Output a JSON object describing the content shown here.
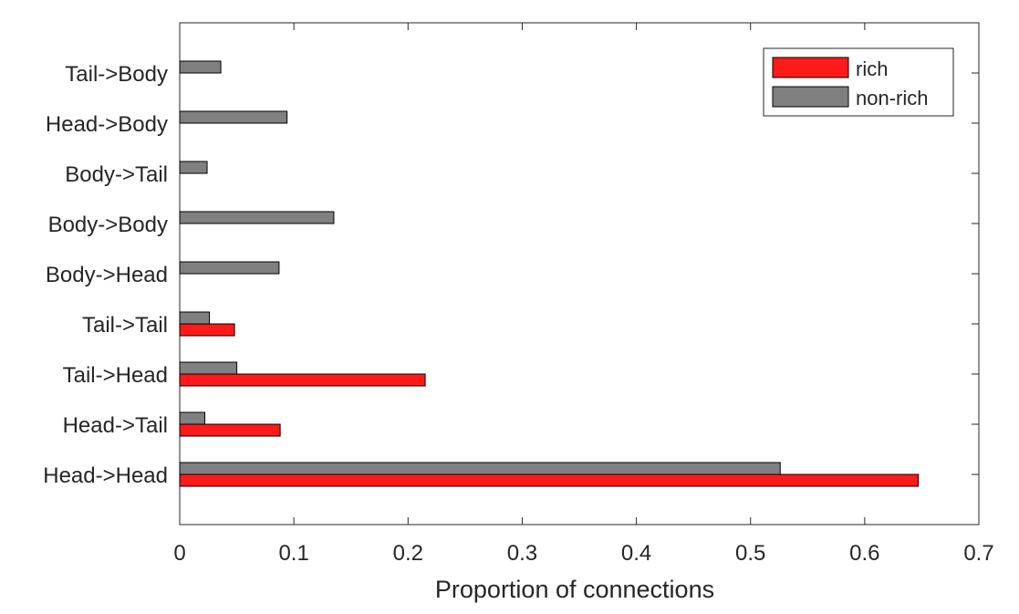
{
  "chart_data": {
    "type": "bar",
    "orientation": "horizontal",
    "title": "",
    "xlabel": "Proportion of connections",
    "ylabel": "",
    "xlim": [
      0,
      0.7
    ],
    "xticks": [
      0,
      0.1,
      0.2,
      0.3,
      0.4,
      0.5,
      0.6,
      0.7
    ],
    "xtick_labels": [
      "0",
      "0.1",
      "0.2",
      "0.3",
      "0.4",
      "0.5",
      "0.6",
      "0.7"
    ],
    "categories": [
      "Head->Head",
      "Head->Tail",
      "Tail->Head",
      "Tail->Tail",
      "Body->Head",
      "Body->Body",
      "Body->Tail",
      "Head->Body",
      "Tail->Body"
    ],
    "series": [
      {
        "name": "rich",
        "color": "#ff1a1a",
        "values": [
          0.647,
          0.088,
          0.215,
          0.048,
          0,
          0,
          0,
          0,
          0
        ]
      },
      {
        "name": "non-rich",
        "color": "#808080",
        "values": [
          0.526,
          0.022,
          0.05,
          0.026,
          0.087,
          0.135,
          0.024,
          0.094,
          0.036
        ]
      }
    ],
    "grid": false,
    "legend": "top-right"
  }
}
